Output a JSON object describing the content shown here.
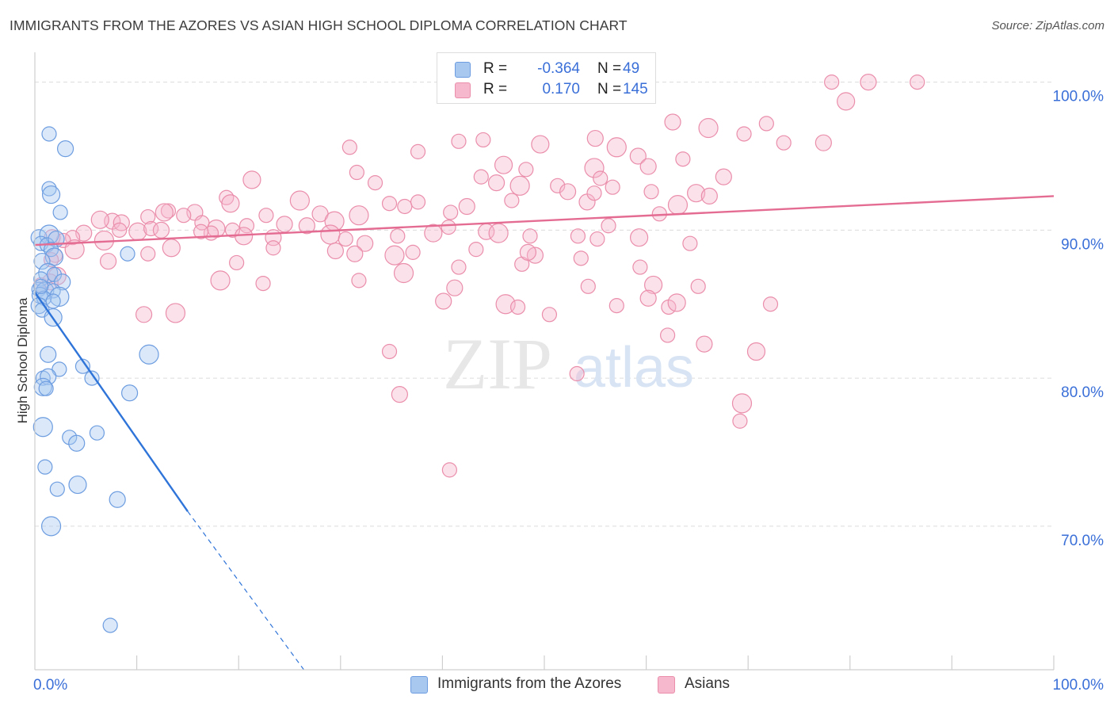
{
  "title": "IMMIGRANTS FROM THE AZORES VS ASIAN HIGH SCHOOL DIPLOMA CORRELATION CHART",
  "source": "Source: ZipAtlas.com",
  "watermark": {
    "zip": "ZIP",
    "atlas": "atlas"
  },
  "legend_top": [
    {
      "r_label": "R =",
      "r_value": "-0.364",
      "n_label": "N =",
      "n_value": "49"
    },
    {
      "r_label": "R =",
      "r_value": "0.170",
      "n_label": "N =",
      "n_value": "145"
    }
  ],
  "legend_bottom": [
    {
      "label": "Immigrants from the Azores"
    },
    {
      "label": "Asians"
    }
  ],
  "colors": {
    "blue_fill": "#a8c8f0",
    "blue_stroke": "#6d9de0",
    "blue_line": "#2f74d8",
    "pink_fill": "#f6b8cc",
    "pink_stroke": "#ea8eab",
    "pink_line": "#e46c93",
    "axis_text": "#3a6fd8",
    "grid": "#dcdcdc"
  },
  "chart_data": {
    "type": "scatter",
    "title": "IMMIGRANTS FROM THE AZORES VS ASIAN HIGH SCHOOL DIPLOMA CORRELATION CHART",
    "xlabel": "",
    "ylabel": "High School Diploma",
    "xlim": [
      0,
      100
    ],
    "ylim": [
      60.3,
      101.8
    ],
    "x_tick_labels": [
      {
        "value": 0,
        "label": "0.0%"
      },
      {
        "value": 100,
        "label": "100.0%"
      }
    ],
    "y_tick_labels": [
      {
        "value": 100,
        "label": "100.0%"
      },
      {
        "value": 90,
        "label": "90.0%"
      },
      {
        "value": 80,
        "label": "80.0%"
      },
      {
        "value": 70,
        "label": "70.0%"
      }
    ],
    "grid": true,
    "series": [
      {
        "name": "Immigrants from the Azores",
        "color": "blue",
        "R": -0.364,
        "N": 49,
        "trend": {
          "x0": 0,
          "y0": 85.8,
          "x1": 15,
          "y1": 71.0,
          "dash_to_x": 26.4,
          "dash_to_y": 60.3
        },
        "points": [
          [
            1.4,
            96.5
          ],
          [
            3.0,
            95.5
          ],
          [
            1.4,
            92.8
          ],
          [
            1.6,
            92.4
          ],
          [
            2.5,
            91.2
          ],
          [
            0.4,
            89.5
          ],
          [
            1.4,
            89.7
          ],
          [
            0.6,
            89.1
          ],
          [
            1.2,
            89.0
          ],
          [
            2.1,
            89.4
          ],
          [
            1.6,
            88.7
          ],
          [
            1.9,
            88.2
          ],
          [
            9.1,
            88.4
          ],
          [
            0.7,
            87.9
          ],
          [
            1.3,
            87.1
          ],
          [
            1.9,
            87.0
          ],
          [
            0.6,
            86.7
          ],
          [
            2.7,
            86.5
          ],
          [
            0.4,
            86.0
          ],
          [
            1.0,
            85.9
          ],
          [
            1.8,
            85.9
          ],
          [
            0.5,
            85.6
          ],
          [
            2.4,
            85.5
          ],
          [
            0.9,
            85.4
          ],
          [
            1.8,
            85.2
          ],
          [
            0.4,
            84.9
          ],
          [
            0.7,
            84.6
          ],
          [
            1.8,
            84.1
          ],
          [
            0.8,
            80.0
          ],
          [
            1.3,
            81.6
          ],
          [
            11.2,
            81.6
          ],
          [
            2.4,
            80.6
          ],
          [
            4.7,
            80.8
          ],
          [
            1.3,
            80.1
          ],
          [
            5.6,
            80.0
          ],
          [
            0.8,
            79.4
          ],
          [
            1.1,
            79.3
          ],
          [
            9.3,
            79.0
          ],
          [
            0.8,
            76.7
          ],
          [
            6.1,
            76.3
          ],
          [
            3.4,
            76.0
          ],
          [
            4.1,
            75.6
          ],
          [
            1.0,
            74.0
          ],
          [
            4.2,
            72.8
          ],
          [
            2.2,
            72.5
          ],
          [
            8.1,
            71.8
          ],
          [
            1.6,
            70.0
          ],
          [
            7.4,
            63.3
          ],
          [
            0.6,
            86.2
          ]
        ]
      },
      {
        "name": "Asians",
        "color": "pink",
        "R": 0.17,
        "N": 145,
        "trend": {
          "x0": 0,
          "y0": 89.0,
          "x1": 100,
          "y1": 92.3
        },
        "points": [
          [
            78.2,
            100.0
          ],
          [
            81.8,
            100.0
          ],
          [
            86.6,
            100.0
          ],
          [
            79.6,
            98.7
          ],
          [
            71.8,
            97.2
          ],
          [
            62.6,
            97.3
          ],
          [
            66.1,
            96.9
          ],
          [
            69.6,
            96.5
          ],
          [
            44.0,
            96.1
          ],
          [
            55.0,
            96.2
          ],
          [
            41.6,
            96.0
          ],
          [
            49.6,
            95.8
          ],
          [
            73.5,
            95.9
          ],
          [
            77.4,
            95.9
          ],
          [
            57.1,
            95.6
          ],
          [
            30.9,
            95.6
          ],
          [
            37.6,
            95.3
          ],
          [
            59.2,
            95.0
          ],
          [
            63.6,
            94.8
          ],
          [
            46.0,
            94.4
          ],
          [
            48.2,
            94.1
          ],
          [
            60.2,
            94.3
          ],
          [
            54.9,
            94.2
          ],
          [
            31.6,
            93.9
          ],
          [
            43.8,
            93.6
          ],
          [
            67.6,
            93.6
          ],
          [
            55.5,
            93.5
          ],
          [
            21.3,
            93.4
          ],
          [
            33.4,
            93.2
          ],
          [
            45.3,
            93.2
          ],
          [
            47.6,
            93.0
          ],
          [
            51.3,
            93.0
          ],
          [
            56.7,
            92.9
          ],
          [
            52.3,
            92.6
          ],
          [
            18.8,
            92.2
          ],
          [
            64.9,
            92.5
          ],
          [
            60.5,
            92.6
          ],
          [
            66.2,
            92.3
          ],
          [
            26.0,
            92.0
          ],
          [
            37.6,
            91.9
          ],
          [
            46.8,
            92.0
          ],
          [
            54.2,
            91.9
          ],
          [
            54.9,
            92.5
          ],
          [
            19.2,
            91.8
          ],
          [
            36.3,
            91.6
          ],
          [
            42.4,
            91.6
          ],
          [
            63.1,
            91.7
          ],
          [
            34.8,
            91.8
          ],
          [
            13.1,
            91.3
          ],
          [
            15.7,
            91.2
          ],
          [
            22.7,
            91.0
          ],
          [
            12.7,
            91.2
          ],
          [
            14.6,
            91.0
          ],
          [
            28.0,
            91.1
          ],
          [
            31.8,
            91.0
          ],
          [
            61.3,
            91.1
          ],
          [
            40.8,
            91.2
          ],
          [
            7.6,
            90.6
          ],
          [
            11.1,
            90.9
          ],
          [
            6.4,
            90.7
          ],
          [
            20.8,
            90.3
          ],
          [
            24.5,
            90.4
          ],
          [
            29.4,
            90.6
          ],
          [
            40.6,
            90.2
          ],
          [
            56.3,
            90.3
          ],
          [
            8.5,
            90.5
          ],
          [
            16.4,
            90.5
          ],
          [
            17.8,
            90.1
          ],
          [
            19.4,
            90.0
          ],
          [
            26.7,
            90.3
          ],
          [
            29.0,
            89.7
          ],
          [
            30.5,
            89.4
          ],
          [
            17.3,
            89.8
          ],
          [
            23.4,
            89.5
          ],
          [
            35.6,
            89.6
          ],
          [
            39.1,
            89.8
          ],
          [
            48.6,
            89.6
          ],
          [
            44.3,
            89.9
          ],
          [
            45.5,
            89.8
          ],
          [
            53.3,
            89.6
          ],
          [
            55.2,
            89.4
          ],
          [
            4.8,
            89.8
          ],
          [
            3.7,
            89.5
          ],
          [
            10.1,
            89.9
          ],
          [
            2.8,
            89.3
          ],
          [
            1.7,
            89.5
          ],
          [
            6.8,
            89.3
          ],
          [
            8.3,
            90.0
          ],
          [
            11.4,
            90.1
          ],
          [
            12.4,
            90.0
          ],
          [
            16.3,
            89.9
          ],
          [
            20.5,
            89.6
          ],
          [
            23.4,
            88.8
          ],
          [
            32.4,
            89.1
          ],
          [
            35.3,
            88.3
          ],
          [
            37.1,
            88.5
          ],
          [
            43.3,
            88.7
          ],
          [
            49.1,
            88.3
          ],
          [
            53.6,
            88.1
          ],
          [
            59.3,
            89.5
          ],
          [
            64.3,
            89.1
          ],
          [
            31.4,
            88.4
          ],
          [
            3.9,
            88.7
          ],
          [
            2.0,
            88.3
          ],
          [
            1.6,
            88.0
          ],
          [
            7.2,
            87.9
          ],
          [
            11.1,
            88.4
          ],
          [
            13.4,
            88.8
          ],
          [
            19.8,
            87.8
          ],
          [
            29.5,
            88.6
          ],
          [
            36.2,
            87.1
          ],
          [
            41.6,
            87.5
          ],
          [
            47.8,
            87.7
          ],
          [
            48.4,
            88.5
          ],
          [
            59.4,
            87.5
          ],
          [
            2.2,
            86.9
          ],
          [
            0.6,
            86.3
          ],
          [
            1.5,
            86.5
          ],
          [
            18.2,
            86.6
          ],
          [
            22.4,
            86.4
          ],
          [
            31.8,
            86.6
          ],
          [
            41.2,
            86.1
          ],
          [
            54.3,
            86.2
          ],
          [
            60.7,
            86.3
          ],
          [
            65.1,
            86.2
          ],
          [
            40.1,
            85.2
          ],
          [
            46.2,
            85.0
          ],
          [
            47.4,
            84.8
          ],
          [
            57.1,
            84.9
          ],
          [
            60.2,
            85.4
          ],
          [
            62.2,
            84.8
          ],
          [
            63.0,
            85.1
          ],
          [
            72.2,
            85.0
          ],
          [
            10.7,
            84.3
          ],
          [
            13.8,
            84.4
          ],
          [
            50.5,
            84.3
          ],
          [
            62.1,
            82.9
          ],
          [
            65.7,
            82.3
          ],
          [
            34.8,
            81.8
          ],
          [
            70.8,
            81.8
          ],
          [
            53.2,
            80.3
          ],
          [
            35.8,
            78.9
          ],
          [
            69.4,
            78.3
          ],
          [
            69.2,
            77.1
          ],
          [
            40.7,
            73.8
          ]
        ]
      }
    ]
  }
}
